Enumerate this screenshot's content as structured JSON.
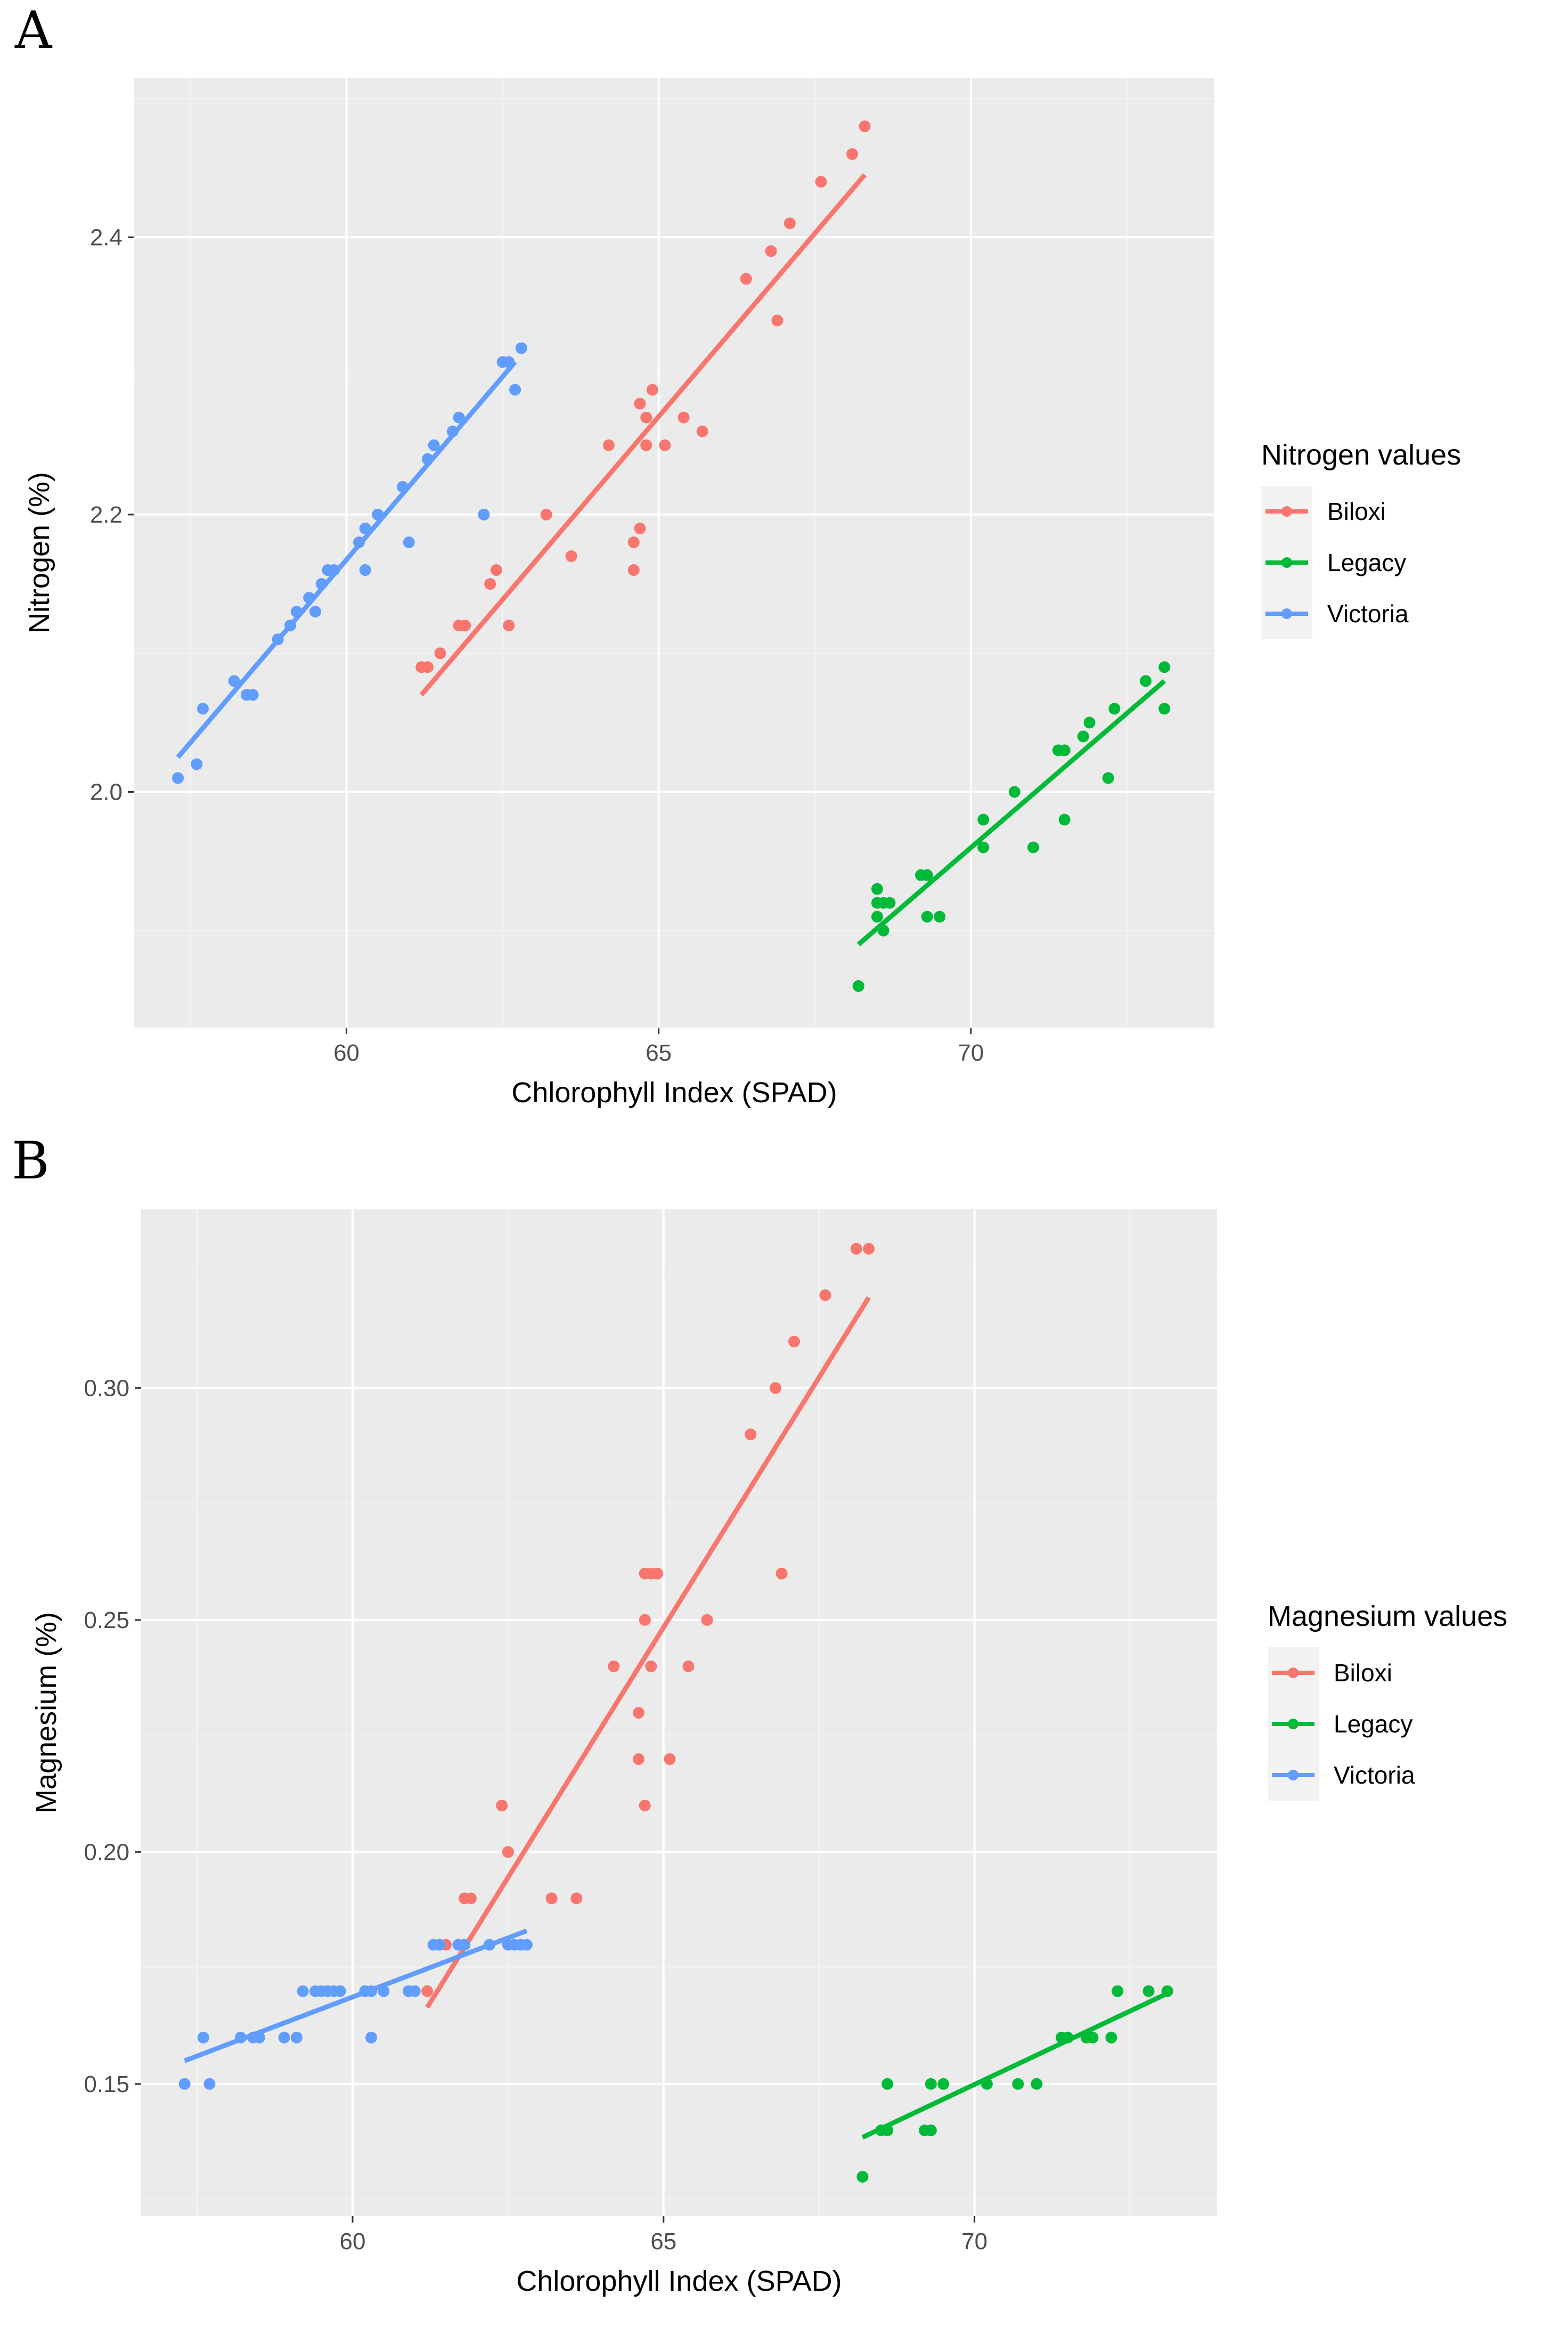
{
  "chart_data": [
    {
      "panel_label": "A",
      "type": "scatter",
      "xlabel": "Chlorophyll Index (SPAD)",
      "ylabel": "Nitrogen (%)",
      "xlim": [
        56.6,
        73.9
      ],
      "ylim": [
        1.83,
        2.515
      ],
      "xticks": [
        60,
        65,
        70
      ],
      "yticks": [
        2.0,
        2.2,
        2.4
      ],
      "ytick_labels": [
        "2.0",
        "2.2",
        "2.4"
      ],
      "grid": true,
      "legend": {
        "title": "Nitrogen values",
        "placement": "right"
      },
      "series": [
        {
          "name": "Biloxi",
          "color": "#F8766D",
          "fit": {
            "x": [
              61.2,
              68.3
            ],
            "y": [
              2.07,
              2.445
            ]
          },
          "points": [
            [
              61.2,
              2.09
            ],
            [
              61.3,
              2.09
            ],
            [
              61.5,
              2.1
            ],
            [
              61.8,
              2.12
            ],
            [
              61.9,
              2.12
            ],
            [
              62.3,
              2.15
            ],
            [
              62.4,
              2.16
            ],
            [
              62.6,
              2.12
            ],
            [
              63.2,
              2.2
            ],
            [
              63.6,
              2.17
            ],
            [
              64.2,
              2.25
            ],
            [
              64.6,
              2.16
            ],
            [
              64.6,
              2.18
            ],
            [
              64.7,
              2.19
            ],
            [
              64.7,
              2.28
            ],
            [
              64.8,
              2.25
            ],
            [
              64.8,
              2.27
            ],
            [
              64.9,
              2.29
            ],
            [
              65.1,
              2.25
            ],
            [
              65.4,
              2.27
            ],
            [
              65.7,
              2.26
            ],
            [
              66.4,
              2.37
            ],
            [
              66.8,
              2.39
            ],
            [
              66.9,
              2.34
            ],
            [
              67.1,
              2.41
            ],
            [
              67.6,
              2.44
            ],
            [
              68.1,
              2.46
            ],
            [
              68.3,
              2.48
            ]
          ]
        },
        {
          "name": "Legacy",
          "color": "#00BA38",
          "fit": {
            "x": [
              68.2,
              73.1
            ],
            "y": [
              1.89,
              2.08
            ]
          },
          "points": [
            [
              68.2,
              1.86
            ],
            [
              68.5,
              1.91
            ],
            [
              68.5,
              1.92
            ],
            [
              68.5,
              1.93
            ],
            [
              68.6,
              1.92
            ],
            [
              68.6,
              1.9
            ],
            [
              68.7,
              1.92
            ],
            [
              69.2,
              1.94
            ],
            [
              69.3,
              1.91
            ],
            [
              69.3,
              1.94
            ],
            [
              69.5,
              1.91
            ],
            [
              70.2,
              1.96
            ],
            [
              70.2,
              1.98
            ],
            [
              70.7,
              2.0
            ],
            [
              71.0,
              1.96
            ],
            [
              71.4,
              2.03
            ],
            [
              71.5,
              2.03
            ],
            [
              71.5,
              1.98
            ],
            [
              71.8,
              2.04
            ],
            [
              71.9,
              2.05
            ],
            [
              72.2,
              2.01
            ],
            [
              72.3,
              2.06
            ],
            [
              72.8,
              2.08
            ],
            [
              73.1,
              2.09
            ],
            [
              73.1,
              2.06
            ]
          ]
        },
        {
          "name": "Victoria",
          "color": "#619CFF",
          "fit": {
            "x": [
              57.3,
              62.7
            ],
            "y": [
              2.025,
              2.31
            ]
          },
          "points": [
            [
              57.3,
              2.01
            ],
            [
              57.6,
              2.02
            ],
            [
              57.7,
              2.06
            ],
            [
              58.2,
              2.08
            ],
            [
              58.4,
              2.07
            ],
            [
              58.5,
              2.07
            ],
            [
              58.9,
              2.11
            ],
            [
              59.1,
              2.12
            ],
            [
              59.2,
              2.13
            ],
            [
              59.4,
              2.14
            ],
            [
              59.5,
              2.13
            ],
            [
              59.6,
              2.15
            ],
            [
              59.7,
              2.16
            ],
            [
              59.8,
              2.16
            ],
            [
              60.2,
              2.18
            ],
            [
              60.3,
              2.19
            ],
            [
              60.3,
              2.16
            ],
            [
              60.5,
              2.2
            ],
            [
              60.9,
              2.22
            ],
            [
              61.0,
              2.18
            ],
            [
              61.3,
              2.24
            ],
            [
              61.4,
              2.25
            ],
            [
              61.7,
              2.26
            ],
            [
              61.8,
              2.27
            ],
            [
              62.2,
              2.2
            ],
            [
              62.5,
              2.31
            ],
            [
              62.6,
              2.31
            ],
            [
              62.7,
              2.29
            ],
            [
              62.8,
              2.32
            ]
          ]
        }
      ]
    },
    {
      "panel_label": "B",
      "type": "scatter",
      "xlabel": "Chlorophyll Index (SPAD)",
      "ylabel": "Magnesium (%)",
      "xlim": [
        56.6,
        73.9
      ],
      "ylim": [
        0.1215,
        0.3385
      ],
      "xticks": [
        60,
        65,
        70
      ],
      "yticks": [
        0.15,
        0.2,
        0.25,
        0.3
      ],
      "ytick_labels": [
        "0.15",
        "0.20",
        "0.25",
        "0.30"
      ],
      "grid": true,
      "legend": {
        "title": "Magnesium values",
        "placement": "right"
      },
      "series": [
        {
          "name": "Biloxi",
          "color": "#F8766D",
          "fit": {
            "x": [
              61.2,
              68.3
            ],
            "y": [
              0.1665,
              0.3195
            ]
          },
          "points": [
            [
              61.2,
              0.17
            ],
            [
              61.5,
              0.18
            ],
            [
              61.8,
              0.18
            ],
            [
              61.8,
              0.19
            ],
            [
              61.9,
              0.19
            ],
            [
              62.4,
              0.21
            ],
            [
              62.5,
              0.2
            ],
            [
              63.2,
              0.19
            ],
            [
              63.6,
              0.19
            ],
            [
              64.2,
              0.24
            ],
            [
              64.6,
              0.23
            ],
            [
              64.6,
              0.22
            ],
            [
              64.7,
              0.21
            ],
            [
              64.7,
              0.25
            ],
            [
              64.7,
              0.26
            ],
            [
              64.8,
              0.24
            ],
            [
              64.8,
              0.26
            ],
            [
              64.9,
              0.26
            ],
            [
              65.1,
              0.22
            ],
            [
              65.4,
              0.24
            ],
            [
              65.7,
              0.25
            ],
            [
              66.4,
              0.29
            ],
            [
              66.8,
              0.3
            ],
            [
              66.9,
              0.26
            ],
            [
              67.1,
              0.31
            ],
            [
              67.6,
              0.32
            ],
            [
              68.1,
              0.33
            ],
            [
              68.3,
              0.33
            ]
          ]
        },
        {
          "name": "Legacy",
          "color": "#00BA38",
          "fit": {
            "x": [
              68.2,
              73.1
            ],
            "y": [
              0.1385,
              0.1695
            ]
          },
          "points": [
            [
              68.2,
              0.13
            ],
            [
              68.5,
              0.14
            ],
            [
              68.6,
              0.14
            ],
            [
              68.6,
              0.15
            ],
            [
              69.2,
              0.14
            ],
            [
              69.3,
              0.15
            ],
            [
              69.3,
              0.14
            ],
            [
              69.5,
              0.15
            ],
            [
              70.2,
              0.15
            ],
            [
              70.7,
              0.15
            ],
            [
              71.0,
              0.15
            ],
            [
              71.4,
              0.16
            ],
            [
              71.5,
              0.16
            ],
            [
              71.8,
              0.16
            ],
            [
              71.9,
              0.16
            ],
            [
              72.2,
              0.16
            ],
            [
              72.3,
              0.17
            ],
            [
              72.8,
              0.17
            ],
            [
              73.1,
              0.17
            ]
          ]
        },
        {
          "name": "Victoria",
          "color": "#619CFF",
          "fit": {
            "x": [
              57.3,
              62.8
            ],
            "y": [
              0.155,
              0.183
            ]
          },
          "points": [
            [
              57.3,
              0.15
            ],
            [
              57.6,
              0.16
            ],
            [
              57.7,
              0.15
            ],
            [
              58.2,
              0.16
            ],
            [
              58.4,
              0.16
            ],
            [
              58.5,
              0.16
            ],
            [
              58.9,
              0.16
            ],
            [
              59.1,
              0.16
            ],
            [
              59.2,
              0.17
            ],
            [
              59.4,
              0.17
            ],
            [
              59.5,
              0.17
            ],
            [
              59.6,
              0.17
            ],
            [
              59.7,
              0.17
            ],
            [
              59.8,
              0.17
            ],
            [
              60.2,
              0.17
            ],
            [
              60.3,
              0.17
            ],
            [
              60.3,
              0.16
            ],
            [
              60.5,
              0.17
            ],
            [
              60.9,
              0.17
            ],
            [
              61.0,
              0.17
            ],
            [
              61.3,
              0.18
            ],
            [
              61.4,
              0.18
            ],
            [
              61.7,
              0.18
            ],
            [
              61.8,
              0.18
            ],
            [
              62.2,
              0.18
            ],
            [
              62.5,
              0.18
            ],
            [
              62.6,
              0.18
            ],
            [
              62.7,
              0.18
            ],
            [
              62.8,
              0.18
            ]
          ]
        }
      ]
    }
  ]
}
